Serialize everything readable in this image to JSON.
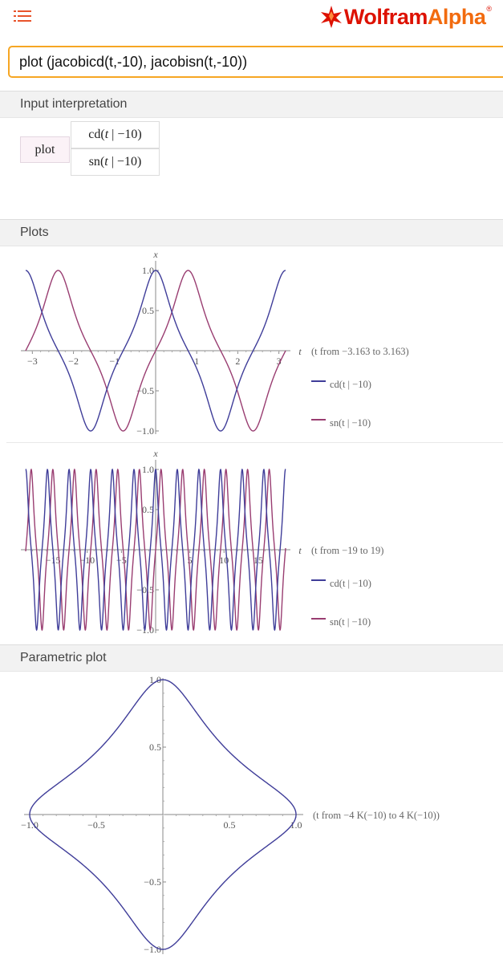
{
  "header": {
    "logo_text_1": "Wolfram",
    "logo_text_2": "Alpha",
    "menu_icon": "hamburger-list-icon",
    "logo_icon": "wolfram-spikey-icon"
  },
  "search": {
    "value": "plot (jacobicd(t,-10), jacobisn(t,-10))"
  },
  "pods": {
    "input_interpretation": {
      "title": "Input interpretation",
      "command": "plot",
      "functions": [
        {
          "name": "cd",
          "var": "t",
          "param": "−10"
        },
        {
          "name": "sn",
          "var": "t",
          "param": "−10"
        }
      ]
    },
    "plots": {
      "title": "Plots",
      "plot1_range": "(t from −3.163 to 3.163)",
      "plot2_range": "(t from −19 to 19)",
      "axis_var": "t",
      "y_axis_label": "x"
    },
    "parametric": {
      "title": "Parametric plot",
      "range": "(t from −4 K(−10) to 4 K(−10))"
    }
  },
  "colors": {
    "cd": "#3f3d99",
    "sn": "#993d71",
    "accent": "#f6a623",
    "brand": "#dd1100"
  },
  "chart_data": [
    {
      "type": "line",
      "x_range": [
        -3.163,
        3.163
      ],
      "ylim": [
        -1,
        1
      ],
      "xticks": [
        "−3",
        "−2",
        "−1",
        "1",
        "2",
        "3"
      ],
      "yticks": [
        "1.0",
        "0.5",
        "−0.5",
        "−1.0"
      ],
      "ylabel": "x",
      "xlabel": "t",
      "series": [
        {
          "name": "cd(t | −10)",
          "function": "jacobicd",
          "m": -10
        },
        {
          "name": "sn(t | −10)",
          "function": "jacobisn",
          "m": -10
        }
      ],
      "legend": [
        "cd(t | −10)",
        "sn(t | −10)"
      ]
    },
    {
      "type": "line",
      "x_range": [
        -19,
        19
      ],
      "ylim": [
        -1,
        1
      ],
      "xticks": [
        "−15",
        "−10",
        "−5",
        "5",
        "10",
        "15"
      ],
      "yticks": [
        "1.0",
        "0.5",
        "−0.5",
        "−1.0"
      ],
      "ylabel": "x",
      "xlabel": "t",
      "series": [
        {
          "name": "cd(t | −10)",
          "function": "jacobicd",
          "m": -10
        },
        {
          "name": "sn(t | −10)",
          "function": "jacobisn",
          "m": -10
        }
      ],
      "legend": [
        "cd(t | −10)",
        "sn(t | −10)"
      ]
    },
    {
      "type": "line",
      "parametric": true,
      "xlim": [
        -1,
        1
      ],
      "ylim": [
        -1,
        1
      ],
      "xticks": [
        "−1.0",
        "−0.5",
        "0.5",
        "1.0"
      ],
      "yticks": [
        "1.0",
        "0.5",
        "−0.5",
        "−1.0"
      ],
      "series": [
        {
          "x_function": "jacobicd",
          "y_function": "jacobisn",
          "m": -10
        }
      ]
    }
  ]
}
